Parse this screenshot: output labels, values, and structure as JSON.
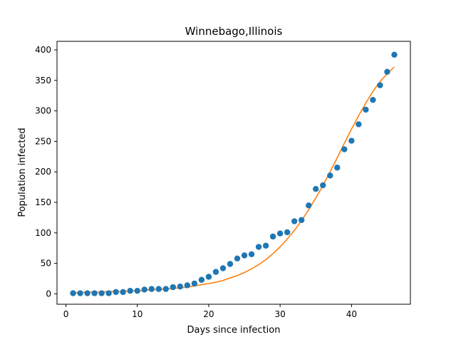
{
  "chart_data": {
    "type": "scatter",
    "title": "Winnebago,Illinois",
    "xlabel": "Days since infection",
    "ylabel": "Population infected",
    "xlim": [
      -1.25,
      48.25
    ],
    "ylim": [
      -17,
      414
    ],
    "xticks": [
      0,
      10,
      20,
      30,
      40
    ],
    "yticks": [
      0,
      50,
      100,
      150,
      200,
      250,
      300,
      350,
      400
    ],
    "grid": false,
    "legend": "none",
    "series": [
      {
        "kind": "scatter",
        "color": "#1f77b4",
        "x": [
          1,
          2,
          3,
          4,
          5,
          6,
          7,
          8,
          9,
          10,
          11,
          12,
          13,
          14,
          15,
          16,
          17,
          18,
          19,
          20,
          21,
          22,
          23,
          24,
          25,
          26,
          27,
          28,
          29,
          30,
          31,
          32,
          33,
          34,
          35,
          36,
          37,
          38,
          39,
          40,
          41,
          42,
          43,
          44,
          45,
          46
        ],
        "y": [
          1,
          1,
          1,
          1,
          1,
          1,
          3,
          3,
          5,
          5,
          7,
          8,
          8,
          8,
          11,
          12,
          14,
          17,
          23,
          28,
          36,
          42,
          49,
          58,
          63,
          65,
          77,
          79,
          94,
          99,
          101,
          119,
          121,
          145,
          172,
          178,
          194,
          207,
          237,
          251,
          278,
          302,
          318,
          342,
          364,
          392
        ]
      },
      {
        "kind": "line",
        "color": "#ff7f0e",
        "x": [
          1,
          2,
          3,
          4,
          5,
          6,
          7,
          8,
          9,
          10,
          11,
          12,
          13,
          14,
          15,
          16,
          17,
          18,
          19,
          20,
          21,
          22,
          23,
          24,
          25,
          26,
          27,
          28,
          29,
          30,
          31,
          32,
          33,
          34,
          35,
          36,
          37,
          38,
          39,
          40,
          41,
          42,
          43,
          44,
          45,
          46
        ],
        "y": [
          2,
          2,
          3,
          3,
          3,
          4,
          4,
          4,
          5,
          5,
          6,
          7,
          7,
          8,
          9,
          10,
          11,
          13,
          15,
          17,
          19,
          22,
          26,
          30,
          35,
          41,
          48,
          56,
          66,
          77,
          90,
          104,
          120,
          138,
          157,
          178,
          200,
          223,
          247,
          270,
          292,
          313,
          332,
          348,
          361,
          372
        ]
      }
    ]
  }
}
